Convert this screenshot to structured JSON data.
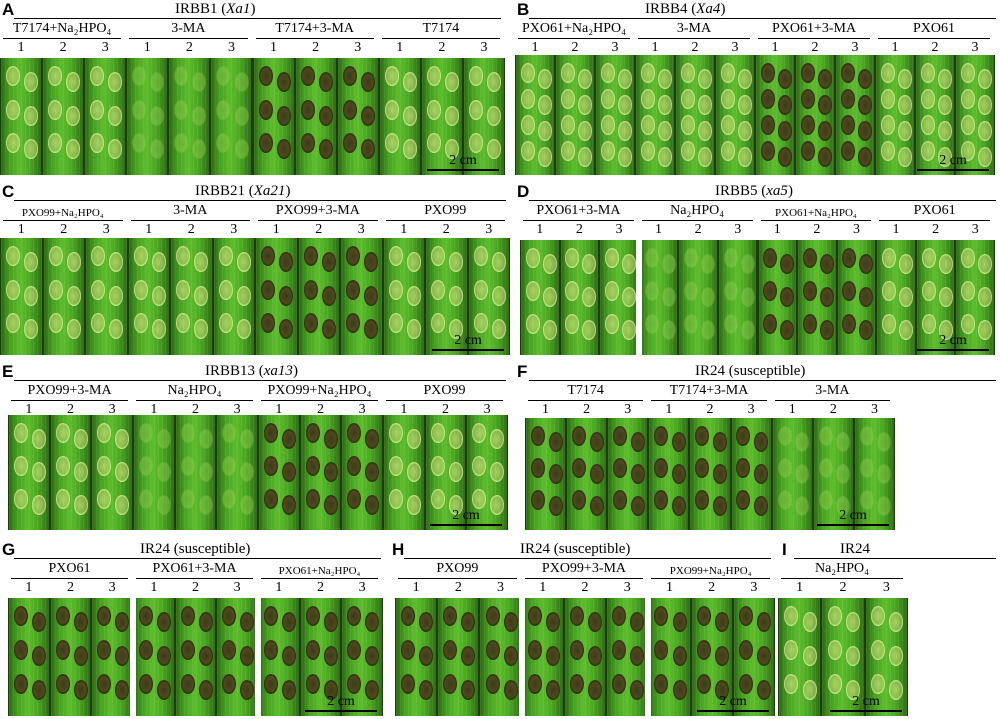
{
  "figure": {
    "panels": [
      {
        "letter": "A",
        "title": "IRBB1 (",
        "gene": "Xa1",
        "title_end": ")",
        "groups": [
          {
            "label": "T7174+Na₂HPO₄",
            "small": false
          },
          {
            "label": "3-MA",
            "small": false
          },
          {
            "label": "T7174+3-MA",
            "small": false
          },
          {
            "label": "T7174",
            "small": false
          }
        ],
        "lane_numbers": [
          "1",
          "2",
          "3"
        ],
        "spot_types": [
          "light",
          "faint",
          "dark",
          "light"
        ],
        "scale_label": "2 cm"
      },
      {
        "letter": "B",
        "title": "IRBB4 (",
        "gene": "Xa4",
        "title_end": ")",
        "groups": [
          {
            "label": "PXO61+Na₂HPO₄",
            "small": false
          },
          {
            "label": "3-MA",
            "small": false
          },
          {
            "label": "PXO61+3-MA",
            "small": false
          },
          {
            "label": "PXO61",
            "small": false
          }
        ],
        "lane_numbers": [
          "1",
          "2",
          "3"
        ],
        "spot_types": [
          "light",
          "light",
          "dark",
          "light"
        ],
        "scale_label": "2 cm"
      },
      {
        "letter": "C",
        "title": "IRBB21 (",
        "gene": "Xa21",
        "title_end": ")",
        "groups": [
          {
            "label": "PXO99+Na₂HPO₄",
            "small": true
          },
          {
            "label": "3-MA",
            "small": false
          },
          {
            "label": "PXO99+3-MA",
            "small": false
          },
          {
            "label": "PXO99",
            "small": false
          }
        ],
        "lane_numbers": [
          "1",
          "2",
          "3"
        ],
        "spot_types": [
          "light",
          "light",
          "dark",
          "light"
        ],
        "scale_label": "2 cm"
      },
      {
        "letter": "D",
        "title": "IRBB5 (",
        "gene": "xa5",
        "title_end": ")",
        "groups": [
          {
            "label": "PXO61+3-MA",
            "small": false
          },
          {
            "label": "Na₂HPO₄",
            "small": false
          },
          {
            "label": "PXO61+Na₂HPO₄",
            "small": true
          },
          {
            "label": "PXO61",
            "small": false
          }
        ],
        "lane_numbers": [
          "1",
          "2",
          "3"
        ],
        "spot_types": [
          "light",
          "faint",
          "dark",
          "light"
        ],
        "scale_label": "2 cm"
      },
      {
        "letter": "E",
        "title": "IRBB13 (",
        "gene": "xa13",
        "title_end": ")",
        "groups": [
          {
            "label": "PXO99+3-MA",
            "small": false
          },
          {
            "label": "Na₂HPO₄",
            "small": false
          },
          {
            "label": "PXO99+Na₂HPO₄",
            "small": false
          },
          {
            "label": "PXO99",
            "small": false
          }
        ],
        "lane_numbers": [
          "1",
          "2",
          "3"
        ],
        "spot_types": [
          "light",
          "faint",
          "dark",
          "light"
        ],
        "scale_label": "2 cm"
      },
      {
        "letter": "F",
        "title": "IR24 (susceptible)",
        "gene": "",
        "title_end": "",
        "groups": [
          {
            "label": "T7174",
            "small": false
          },
          {
            "label": "T7174+3-MA",
            "small": false
          },
          {
            "label": "3-MA",
            "small": false
          }
        ],
        "lane_numbers": [
          "1",
          "2",
          "3"
        ],
        "spot_types": [
          "dark",
          "dark",
          "faint"
        ],
        "scale_label": "2 cm"
      },
      {
        "letter": "G",
        "title": "IR24 (susceptible)",
        "gene": "",
        "title_end": "",
        "groups": [
          {
            "label": "PXO61",
            "small": false
          },
          {
            "label": "PXO61+3-MA",
            "small": false
          },
          {
            "label": "PXO61+Na₂HPO₄",
            "small": true
          }
        ],
        "lane_numbers": [
          "1",
          "2",
          "3"
        ],
        "spot_types": [
          "dark",
          "dark",
          "dark"
        ],
        "scale_label": "2 cm"
      },
      {
        "letter": "H",
        "title": "IR24 (susceptible)",
        "gene": "",
        "title_end": "",
        "groups": [
          {
            "label": "PXO99",
            "small": false
          },
          {
            "label": "PXO99+3-MA",
            "small": false
          },
          {
            "label": "PXO99+Na₂HPO₄",
            "small": true
          }
        ],
        "lane_numbers": [
          "1",
          "2",
          "3"
        ],
        "spot_types": [
          "dark",
          "dark",
          "dark"
        ],
        "scale_label": "2 cm"
      },
      {
        "letter": "I",
        "title": "IR24",
        "gene": "",
        "title_end": "",
        "groups": [
          {
            "label": "Na₂HPO₄",
            "small": false
          }
        ],
        "lane_numbers": [
          "1",
          "2",
          "3"
        ],
        "spot_types": [
          "light"
        ],
        "scale_label": "2 cm"
      }
    ]
  }
}
